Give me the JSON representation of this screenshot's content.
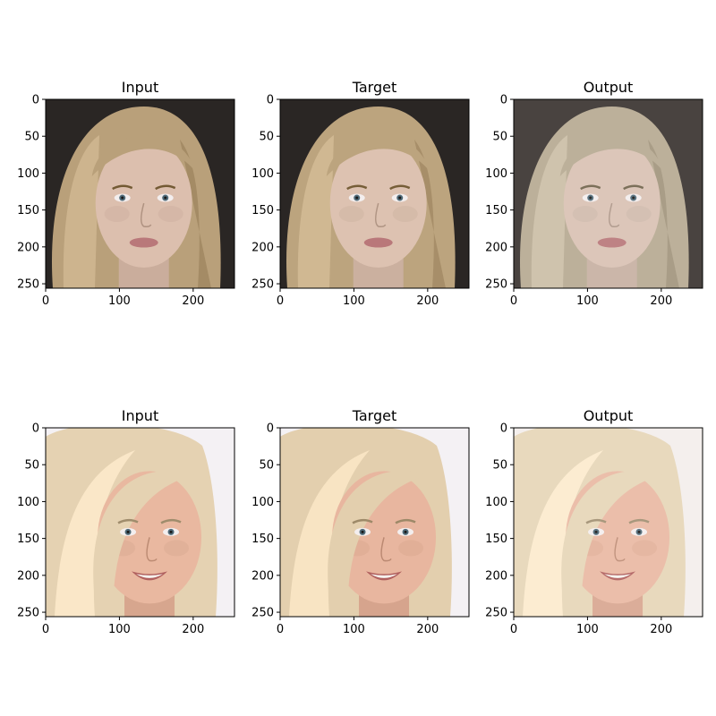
{
  "figure": {
    "background": "#ffffff",
    "panels": [
      {
        "title": "Input",
        "xticks": [
          "0",
          "100",
          "200"
        ],
        "yticks": [
          "0",
          "50",
          "100",
          "150",
          "200",
          "250"
        ],
        "image": {
          "subject": "face-portrait",
          "hair": "#b9a07a",
          "skin": "#dcbfae",
          "background": "#2a2624"
        }
      },
      {
        "title": "Target",
        "xticks": [
          "0",
          "100",
          "200"
        ],
        "yticks": [
          "0",
          "50",
          "100",
          "150",
          "200",
          "250"
        ],
        "image": {
          "subject": "face-portrait",
          "hair": "#bca47e",
          "skin": "#ddc2b1",
          "background": "#2a2624"
        }
      },
      {
        "title": "Output",
        "xticks": [
          "0",
          "100",
          "200"
        ],
        "yticks": [
          "0",
          "50",
          "100",
          "150",
          "200",
          "250"
        ],
        "image": {
          "subject": "face-portrait",
          "hair": "#b7aa92",
          "skin": "#d9c2b4",
          "background": "#3a3430"
        }
      },
      {
        "title": "Input",
        "xticks": [
          "0",
          "100",
          "200"
        ],
        "yticks": [
          "0",
          "50",
          "100",
          "150",
          "200",
          "250"
        ],
        "image": {
          "subject": "face-portrait",
          "hair": "#e5d2b2",
          "skin": "#e9b8a0",
          "background": "#f4f1f4"
        }
      },
      {
        "title": "Target",
        "xticks": [
          "0",
          "100",
          "200"
        ],
        "yticks": [
          "0",
          "50",
          "100",
          "150",
          "200",
          "250"
        ],
        "image": {
          "subject": "face-portrait",
          "hair": "#e3cfae",
          "skin": "#e8b69f",
          "background": "#f4f1f4"
        }
      },
      {
        "title": "Output",
        "xticks": [
          "0",
          "100",
          "200"
        ],
        "yticks": [
          "0",
          "50",
          "100",
          "150",
          "200",
          "250"
        ],
        "image": {
          "subject": "face-portrait",
          "hair": "#e7d6b8",
          "skin": "#eab9a3",
          "background": "#f3eeec"
        }
      }
    ]
  }
}
